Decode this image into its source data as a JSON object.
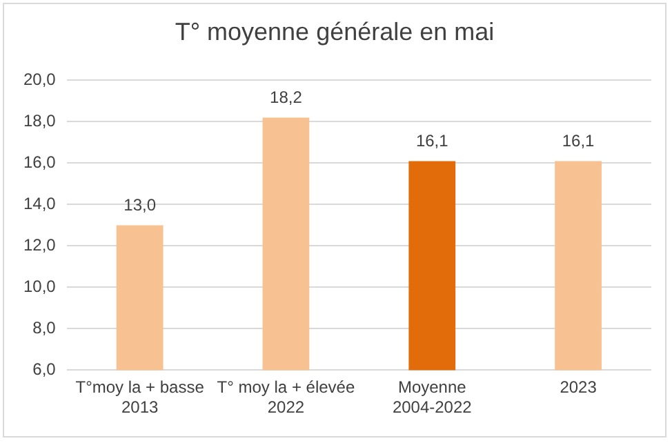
{
  "chart_data": {
    "type": "bar",
    "title": "T° moyenne générale en mai",
    "categories": [
      "T°moy la + basse\n2013",
      "T° moy la + élevée\n2022",
      "Moyenne\n2004-2022",
      "2023"
    ],
    "values": [
      13.0,
      18.2,
      16.1,
      16.1
    ],
    "colors": [
      "#f8c192",
      "#f8c192",
      "#e36c0a",
      "#f8c192"
    ],
    "value_labels": [
      "13,0",
      "18,2",
      "16,1",
      "16,1"
    ],
    "ylim": [
      6,
      20
    ],
    "yticks": [
      {
        "value": 6,
        "label": "6,0"
      },
      {
        "value": 8,
        "label": "8,0"
      },
      {
        "value": 10,
        "label": "10,0"
      },
      {
        "value": 12,
        "label": "12,0"
      },
      {
        "value": 14,
        "label": "14,0"
      },
      {
        "value": 16,
        "label": "16,0"
      },
      {
        "value": 18,
        "label": "18,0"
      },
      {
        "value": 20,
        "label": "20,0"
      }
    ],
    "grid": "y",
    "legend": false
  }
}
